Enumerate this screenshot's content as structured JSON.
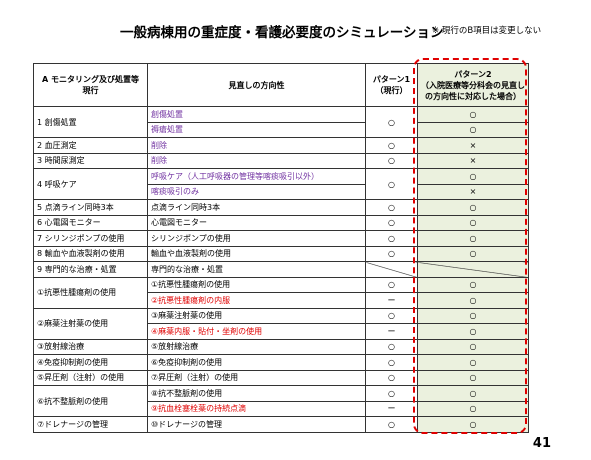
{
  "header": {
    "title": "一般病棟用の重症度・看護必要度のシミュレーション",
    "note": "※ 現行のB項目は変更しない"
  },
  "table": {
    "columns": [
      [
        "A モニタリング及び処置等",
        "現行"
      ],
      [
        "見直しの方向性"
      ],
      [
        "パターン1",
        "（現行）"
      ],
      [
        "パターン2",
        "（入院医療等分科会の見直し",
        "の方向性に対応した場合）"
      ]
    ],
    "groups": [
      {
        "item": "1 創傷処置",
        "pattern1": "○",
        "entries": [
          {
            "direction": "創傷処置",
            "color": "#7030a0",
            "pattern2": "○"
          },
          {
            "direction": "褥瘡処置",
            "color": "#7030a0",
            "pattern2": "○"
          }
        ]
      },
      {
        "item": "2 血圧測定",
        "entries": [
          {
            "direction": "削除",
            "color": "#7030a0",
            "pattern1": "○",
            "pattern2": "×"
          }
        ]
      },
      {
        "item": "3 時間尿測定",
        "entries": [
          {
            "direction": "削除",
            "color": "#7030a0",
            "pattern1": "○",
            "pattern2": "×"
          }
        ]
      },
      {
        "item": "4 呼吸ケア",
        "pattern1": "○",
        "entries": [
          {
            "direction": "呼吸ケア（人工呼吸器の管理等喀痰吸引以外）",
            "color": "#7030a0",
            "pattern2": "○"
          },
          {
            "direction": "喀痰吸引のみ",
            "color": "#7030a0",
            "pattern2": "×"
          }
        ]
      },
      {
        "item": "5 点滴ライン同時3本",
        "entries": [
          {
            "direction": "点滴ライン同時3本",
            "pattern1": "○",
            "pattern2": "○"
          }
        ]
      },
      {
        "item": "6 心電図モニター",
        "entries": [
          {
            "direction": "心電図モニター",
            "pattern1": "○",
            "pattern2": "○"
          }
        ]
      },
      {
        "item": "7 シリンジポンプの使用",
        "entries": [
          {
            "direction": "シリンジポンプの使用",
            "pattern1": "○",
            "pattern2": "○"
          }
        ]
      },
      {
        "item": "8 輸血や血液製剤の使用",
        "entries": [
          {
            "direction": "輸血や血液製剤の使用",
            "pattern1": "○",
            "pattern2": "○"
          }
        ]
      },
      {
        "item": "9 専門的な治療・処置",
        "entries": [
          {
            "direction": "専門的な治療・処置"
          }
        ]
      },
      {
        "item": "①抗悪性腫瘍剤の使用",
        "entries": [
          {
            "direction": "①抗悪性腫瘍剤の使用",
            "pattern1": "○",
            "pattern2": "○"
          },
          {
            "direction": "②抗悪性腫瘍剤の内服",
            "color": "#e00000",
            "pattern1": "ー",
            "pattern2": "○"
          }
        ]
      },
      {
        "item": "②麻薬注射薬の使用",
        "entries": [
          {
            "direction": "③麻薬注射薬の使用",
            "pattern1": "○",
            "pattern2": "○"
          },
          {
            "direction": "④麻薬内服・貼付・坐剤の使用",
            "color": "#e00000",
            "pattern1": "ー",
            "pattern2": "○"
          }
        ]
      },
      {
        "item": "③放射線治療",
        "entries": [
          {
            "direction": "⑤放射線治療",
            "pattern1": "○",
            "pattern2": "○"
          }
        ]
      },
      {
        "item": "④免疫抑制剤の使用",
        "entries": [
          {
            "direction": "⑥免疫抑制剤の使用",
            "pattern1": "○",
            "pattern2": "○"
          }
        ]
      },
      {
        "item": "⑤昇圧剤（注射）の使用",
        "entries": [
          {
            "direction": "⑦昇圧剤（注射）の使用",
            "pattern1": "○",
            "pattern2": "○"
          }
        ]
      },
      {
        "item": "⑥抗不整脈剤の使用",
        "entries": [
          {
            "direction": "⑧抗不整脈剤の使用",
            "pattern1": "○",
            "pattern2": "○"
          },
          {
            "direction": "⑨抗血栓塞栓薬の持続点滴",
            "color": "#e00000",
            "pattern1": "ー",
            "pattern2": "○"
          }
        ]
      },
      {
        "item": "⑦ドレナージの管理",
        "entries": [
          {
            "direction": "⑩ドレナージの管理",
            "pattern1": "○",
            "pattern2": "○"
          }
        ]
      }
    ]
  },
  "footer": {
    "page": "41"
  }
}
